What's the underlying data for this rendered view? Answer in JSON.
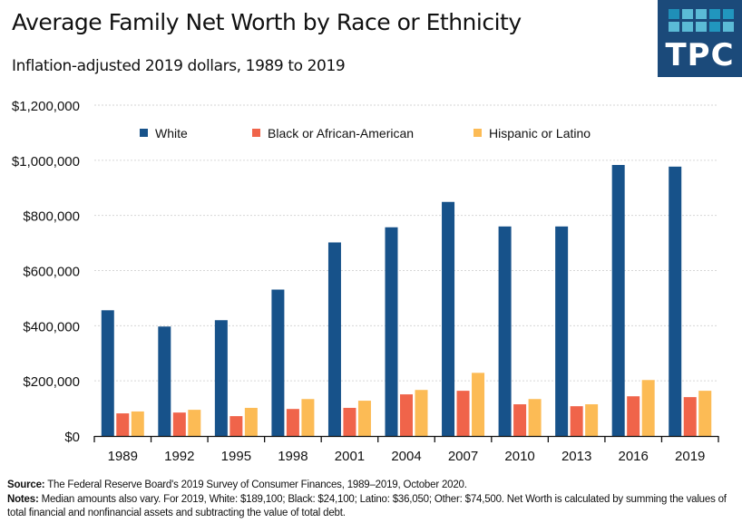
{
  "header": {
    "title": "Average Family Net Worth by Race or Ethnicity",
    "subtitle": "Inflation-adjusted 2019 dollars, 1989 to 2019",
    "logo_text": "TPC"
  },
  "footer": {
    "source_label": "Source:",
    "source_text": " The Federal Reserve Board's 2019 Survey of Consumer Finances, 1989–2019, October 2020.",
    "notes_label": "Notes:",
    "notes_text": " Median amounts also vary. For 2019, White: $189,100; Black: $24,100; Latino: $36,050; Other: $74,500. Net Worth is calculated by summing the values of total financial and nonfinancial assets and subtracting the value of total debt."
  },
  "chart_data": {
    "type": "bar",
    "title": "Average Family Net Worth by Race or Ethnicity",
    "subtitle": "Inflation-adjusted 2019 dollars, 1989 to 2019",
    "xlabel": "",
    "ylabel": "",
    "ylim": [
      0,
      1200000
    ],
    "yticks": [
      0,
      200000,
      400000,
      600000,
      800000,
      1000000,
      1200000
    ],
    "ytick_labels": [
      "$0",
      "$200,000",
      "$400,000",
      "$600,000",
      "$800,000",
      "$1,000,000",
      "$1,200,000"
    ],
    "grid": true,
    "legend_position": "top",
    "categories": [
      "1989",
      "1992",
      "1995",
      "1998",
      "2001",
      "2004",
      "2007",
      "2010",
      "2013",
      "2016",
      "2019"
    ],
    "series": [
      {
        "name": "White",
        "color": "#17528a",
        "values": [
          456000,
          397000,
          420000,
          531000,
          702000,
          757000,
          849000,
          760000,
          760000,
          983000,
          977000
        ]
      },
      {
        "name": "Black or African-American",
        "color": "#f0644a",
        "values": [
          82000,
          85000,
          72000,
          98000,
          102000,
          151000,
          164000,
          115000,
          108000,
          144000,
          141000
        ]
      },
      {
        "name": "Hispanic or Latino",
        "color": "#fcbb55",
        "values": [
          89000,
          95000,
          102000,
          134000,
          128000,
          167000,
          229000,
          134000,
          115000,
          203000,
          164000
        ]
      }
    ]
  }
}
